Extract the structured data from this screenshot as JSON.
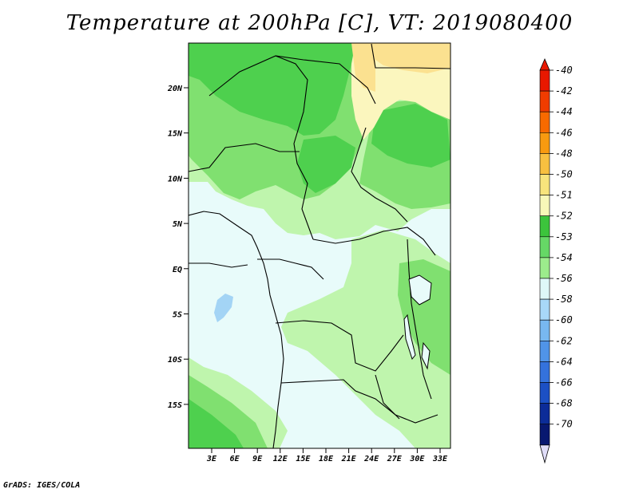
{
  "title": "Temperature at 200hPa [C], VT: 2019080400",
  "footer": "GrADS: IGES/COLA",
  "map": {
    "lat_labels": [
      "20N",
      "15N",
      "10N",
      "5N",
      "EQ",
      "5S",
      "10S",
      "15S"
    ],
    "lon_labels": [
      "3E",
      "6E",
      "9E",
      "12E",
      "15E",
      "18E",
      "21E",
      "24E",
      "27E",
      "30E",
      "33E"
    ]
  },
  "legend": {
    "labels": [
      "-40",
      "-42",
      "-44",
      "-46",
      "-48",
      "-50",
      "-51",
      "-52",
      "-53",
      "-54",
      "-56",
      "-58",
      "-60",
      "-62",
      "-64",
      "-66",
      "-68",
      "-70"
    ],
    "colors": [
      "#e81800",
      "#f03c00",
      "#f86a00",
      "#f89a10",
      "#f8c040",
      "#f8e47c",
      "#f8f8b8",
      "#3cc43c",
      "#66d866",
      "#9cec8c",
      "#def8f8",
      "#a8d8f8",
      "#78b8f0",
      "#5094e8",
      "#3472dc",
      "#1c50c4",
      "#0c2c98",
      "#081870"
    ],
    "colors_note": "",
    "low_end_color": "#e0ddf8"
  },
  "colors": {
    "ocean": "#e8fbfa",
    "green_light": "#bff5ad",
    "green_mid": "#80e070",
    "green_dark": "#4ed04e",
    "yellow_light": "#fbf6be",
    "yellow": "#fbe190",
    "blue_light": "#a3d4f5",
    "border": "#000000"
  }
}
